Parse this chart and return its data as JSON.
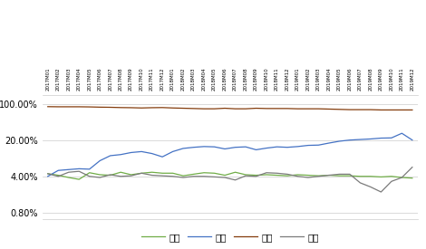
{
  "y_ticks": [
    0.008,
    0.04,
    0.2,
    1.0
  ],
  "y_tick_labels": [
    "0.80%",
    "4.00%",
    "20.00%",
    "100.00%"
  ],
  "x_labels": [
    "2017M01",
    "2017M02",
    "2017M03",
    "2017M04",
    "2017M05",
    "2017M06",
    "2017M07",
    "2017M08",
    "2017M09",
    "2017M10",
    "2017M11",
    "2017M12",
    "2018M01",
    "2018M02",
    "2018M03",
    "2018M04",
    "2018M05",
    "2018M06",
    "2018M07",
    "2018M08",
    "2018M09",
    "2018M10",
    "2018M11",
    "2018M12",
    "2019M01",
    "2019M02",
    "2019M03",
    "2019M04",
    "2019M05",
    "2019M06",
    "2019M07",
    "2019M08",
    "2019M09",
    "2019M10",
    "2019M11",
    "2019M12"
  ],
  "series": {
    "简装": {
      "color": "#70ad47",
      "values": [
        0.045,
        0.042,
        0.038,
        0.035,
        0.047,
        0.043,
        0.042,
        0.048,
        0.043,
        0.046,
        0.048,
        0.046,
        0.046,
        0.041,
        0.044,
        0.047,
        0.046,
        0.042,
        0.048,
        0.043,
        0.042,
        0.043,
        0.042,
        0.041,
        0.043,
        0.042,
        0.041,
        0.042,
        0.041,
        0.041,
        0.04,
        0.04,
        0.039,
        0.04,
        0.038,
        0.037
      ]
    },
    "精装": {
      "color": "#4472c4",
      "values": [
        0.04,
        0.052,
        0.054,
        0.056,
        0.055,
        0.08,
        0.1,
        0.105,
        0.115,
        0.12,
        0.11,
        0.095,
        0.12,
        0.138,
        0.145,
        0.15,
        0.148,
        0.135,
        0.145,
        0.148,
        0.13,
        0.14,
        0.148,
        0.145,
        0.15,
        0.158,
        0.16,
        0.175,
        0.19,
        0.2,
        0.205,
        0.21,
        0.218,
        0.22,
        0.27,
        0.2
      ]
    },
    "毛坤": {
      "color": "#843c0c",
      "values": [
        0.88,
        0.875,
        0.875,
        0.875,
        0.87,
        0.86,
        0.855,
        0.845,
        0.84,
        0.83,
        0.84,
        0.845,
        0.83,
        0.82,
        0.81,
        0.8,
        0.8,
        0.82,
        0.8,
        0.8,
        0.82,
        0.81,
        0.81,
        0.81,
        0.8,
        0.8,
        0.8,
        0.79,
        0.78,
        0.77,
        0.77,
        0.77,
        0.76,
        0.76,
        0.76,
        0.76
      ]
    },
    "其他": {
      "color": "#7b7b7b",
      "values": [
        0.045,
        0.04,
        0.048,
        0.05,
        0.04,
        0.038,
        0.043,
        0.04,
        0.041,
        0.046,
        0.042,
        0.041,
        0.04,
        0.038,
        0.04,
        0.04,
        0.039,
        0.038,
        0.034,
        0.041,
        0.04,
        0.047,
        0.046,
        0.044,
        0.04,
        0.038,
        0.04,
        0.042,
        0.044,
        0.044,
        0.03,
        0.025,
        0.02,
        0.032,
        0.038,
        0.06
      ]
    }
  },
  "legend_labels": [
    "简装",
    "精装",
    "毛坤",
    "其他"
  ],
  "background_color": "#ffffff",
  "grid_color": "#cccccc",
  "ylim_low": 0.006,
  "ylim_high": 1.5
}
